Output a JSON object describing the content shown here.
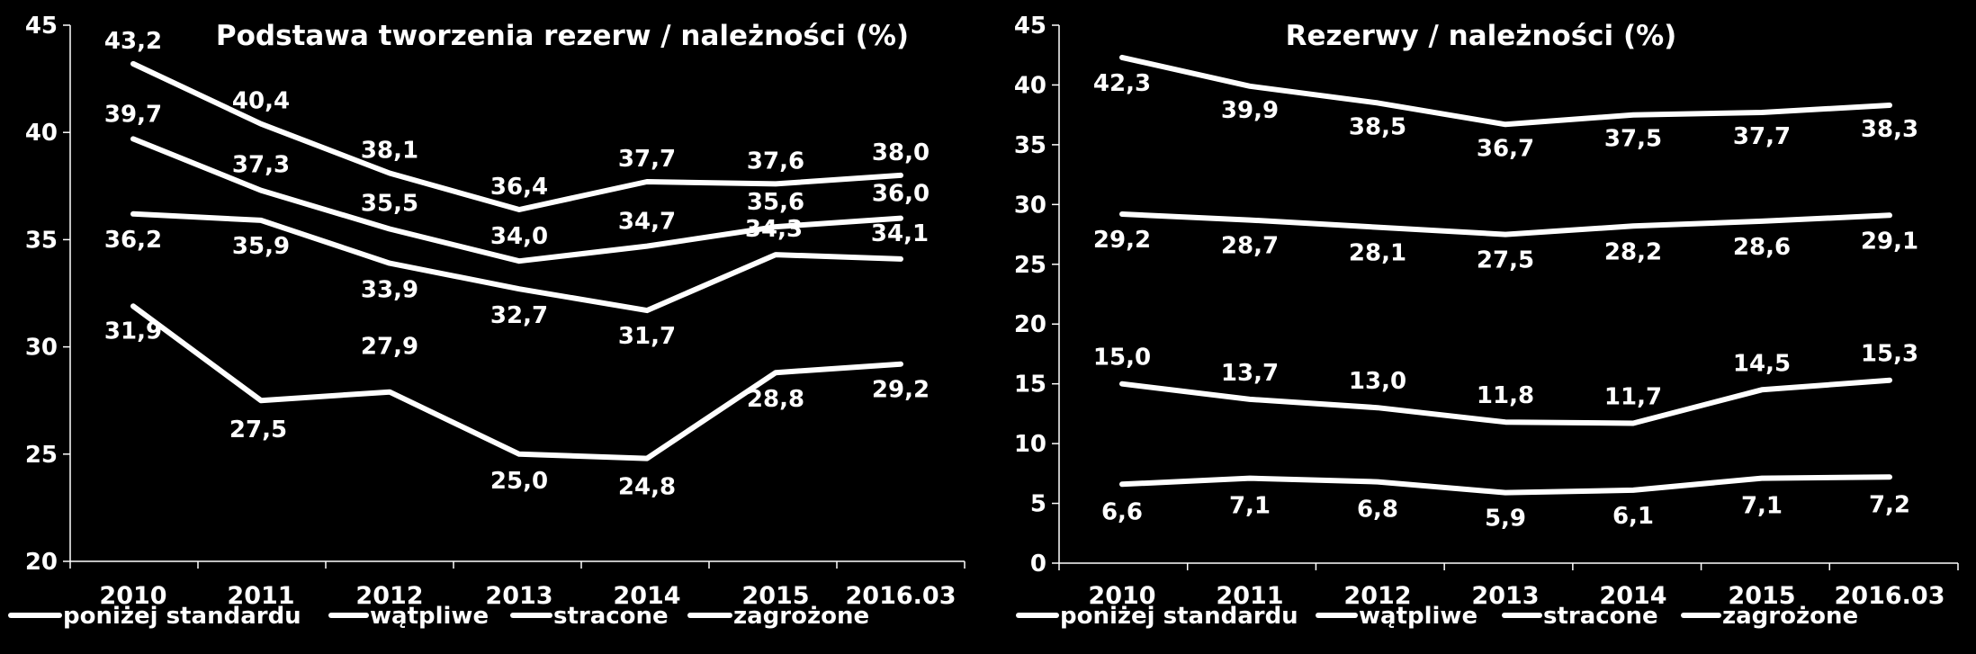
{
  "chart_data": [
    {
      "type": "line",
      "title": "Podstawa tworzenia rezerw / należności (%)",
      "categories": [
        "2010",
        "2011",
        "2012",
        "2013",
        "2014",
        "2015",
        "2016.03"
      ],
      "ylim": [
        20,
        45
      ],
      "yticks": [
        "20",
        "25",
        "30",
        "35",
        "40",
        "45"
      ],
      "legend_position": "bottom",
      "grid": false,
      "series": [
        {
          "name": "poniżej standardu",
          "values": [
            36.2,
            35.9,
            33.9,
            32.7,
            31.7,
            34.3,
            34.1
          ],
          "labels": [
            "36,2",
            "35,9",
            "33,9",
            "32,7",
            "31,7",
            "34,3",
            "34,1"
          ]
        },
        {
          "name": "wątpliwe",
          "values": [
            31.9,
            27.5,
            27.9,
            25.0,
            24.8,
            28.8,
            29.2
          ],
          "labels": [
            "31,9",
            "27,5",
            "27,9",
            "25,0",
            "24,8",
            "28,8",
            "29,2"
          ]
        },
        {
          "name": "stracone",
          "values": [
            43.2,
            40.4,
            38.1,
            36.4,
            37.7,
            37.6,
            38.0
          ],
          "labels": [
            "43,2",
            "40,4",
            "38,1",
            "36,4",
            "37,7",
            "37,6",
            "38,0"
          ]
        },
        {
          "name": "zagrożone",
          "values": [
            39.7,
            37.3,
            35.5,
            34.0,
            34.7,
            35.6,
            36.0
          ],
          "labels": [
            "39,7",
            "37,3",
            "35,5",
            "34,0",
            "34,7",
            "35,6",
            "36,0"
          ]
        }
      ]
    },
    {
      "type": "line",
      "title": "Rezerwy / należności (%)",
      "categories": [
        "2010",
        "2011",
        "2012",
        "2013",
        "2014",
        "2015",
        "2016.03"
      ],
      "ylim": [
        0,
        45
      ],
      "yticks": [
        "0",
        "5",
        "10",
        "15",
        "20",
        "25",
        "30",
        "35",
        "40",
        "45"
      ],
      "legend_position": "bottom",
      "grid": false,
      "series": [
        {
          "name": "poniżej standardu",
          "values": [
            6.6,
            7.1,
            6.8,
            5.9,
            6.1,
            7.1,
            7.2
          ],
          "labels": [
            "6,6",
            "7,1",
            "6,8",
            "5,9",
            "6,1",
            "7,1",
            "7,2"
          ]
        },
        {
          "name": "wątpliwe",
          "values": [
            15.0,
            13.7,
            13.0,
            11.8,
            11.7,
            14.5,
            15.3
          ],
          "labels": [
            "15,0",
            "13,7",
            "13,0",
            "11,8",
            "11,7",
            "14,5",
            "15,3"
          ]
        },
        {
          "name": "stracone",
          "values": [
            42.3,
            39.9,
            38.5,
            36.7,
            37.5,
            37.7,
            38.3
          ],
          "labels": [
            "42,3",
            "39,9",
            "38,5",
            "36,7",
            "37,5",
            "37,7",
            "38,3"
          ]
        },
        {
          "name": "zagrożone",
          "values": [
            29.2,
            28.7,
            28.1,
            27.5,
            28.2,
            28.6,
            29.1
          ],
          "labels": [
            "29,2",
            "28,7",
            "28,1",
            "27,5",
            "28,2",
            "28,6",
            "29,1"
          ]
        }
      ]
    }
  ],
  "colors": {
    "background": "#000000",
    "line": "#ffffff",
    "text": "#ffffff"
  }
}
